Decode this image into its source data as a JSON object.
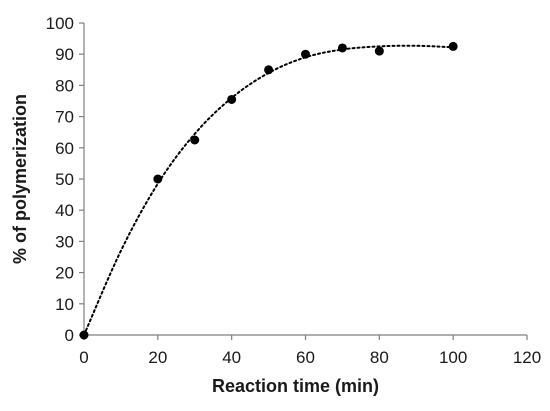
{
  "chart_data": {
    "type": "scatter",
    "title": "",
    "xlabel": "Reaction time (min)",
    "ylabel": "% of polymerization",
    "xlim": [
      0,
      120
    ],
    "ylim": [
      0,
      100
    ],
    "x_ticks": [
      0,
      20,
      40,
      60,
      80,
      100,
      120
    ],
    "y_ticks": [
      0,
      10,
      20,
      30,
      40,
      50,
      60,
      70,
      80,
      90,
      100
    ],
    "grid": false,
    "legend": "none",
    "series": [
      {
        "x": [
          0,
          20,
          30,
          40,
          50,
          60,
          70,
          80,
          100
        ],
        "y": [
          0,
          50,
          62.5,
          75.5,
          85,
          90,
          92,
          91,
          92.5
        ],
        "marker": "circle",
        "color": "#000000"
      }
    ],
    "trendline": {
      "style": "dotted",
      "color": "#000000",
      "x": [
        0,
        10,
        20,
        30,
        40,
        50,
        60,
        70,
        80,
        90,
        100
      ],
      "y": [
        0,
        27,
        48.5,
        64.5,
        76,
        84,
        89,
        91.5,
        92.5,
        92.7,
        92.2
      ]
    }
  }
}
